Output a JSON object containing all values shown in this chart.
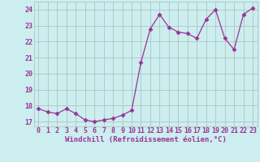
{
  "x": [
    0,
    1,
    2,
    3,
    4,
    5,
    6,
    7,
    8,
    9,
    10,
    11,
    12,
    13,
    14,
    15,
    16,
    17,
    18,
    19,
    20,
    21,
    22,
    23
  ],
  "y": [
    17.8,
    17.6,
    17.5,
    17.8,
    17.5,
    17.1,
    17.0,
    17.1,
    17.2,
    17.4,
    17.7,
    20.7,
    22.8,
    23.7,
    22.9,
    22.6,
    22.5,
    22.2,
    23.4,
    24.0,
    22.2,
    21.5,
    23.7,
    24.1
  ],
  "line_color": "#993399",
  "marker": "D",
  "marker_size": 2.5,
  "bg_color": "#cceeee",
  "grid_color": "#aabbbb",
  "xlabel": "Windchill (Refroidissement éolien,°C)",
  "ylabel_ticks": [
    17,
    18,
    19,
    20,
    21,
    22,
    23,
    24
  ],
  "xlabel_ticks": [
    0,
    1,
    2,
    3,
    4,
    5,
    6,
    7,
    8,
    9,
    10,
    11,
    12,
    13,
    14,
    15,
    16,
    17,
    18,
    19,
    20,
    21,
    22,
    23
  ],
  "xlim": [
    -0.5,
    23.5
  ],
  "ylim": [
    16.7,
    24.5
  ],
  "label_color": "#993399",
  "label_fontsize": 6.5,
  "tick_fontsize": 6.0,
  "spine_color": "#aabbbb"
}
